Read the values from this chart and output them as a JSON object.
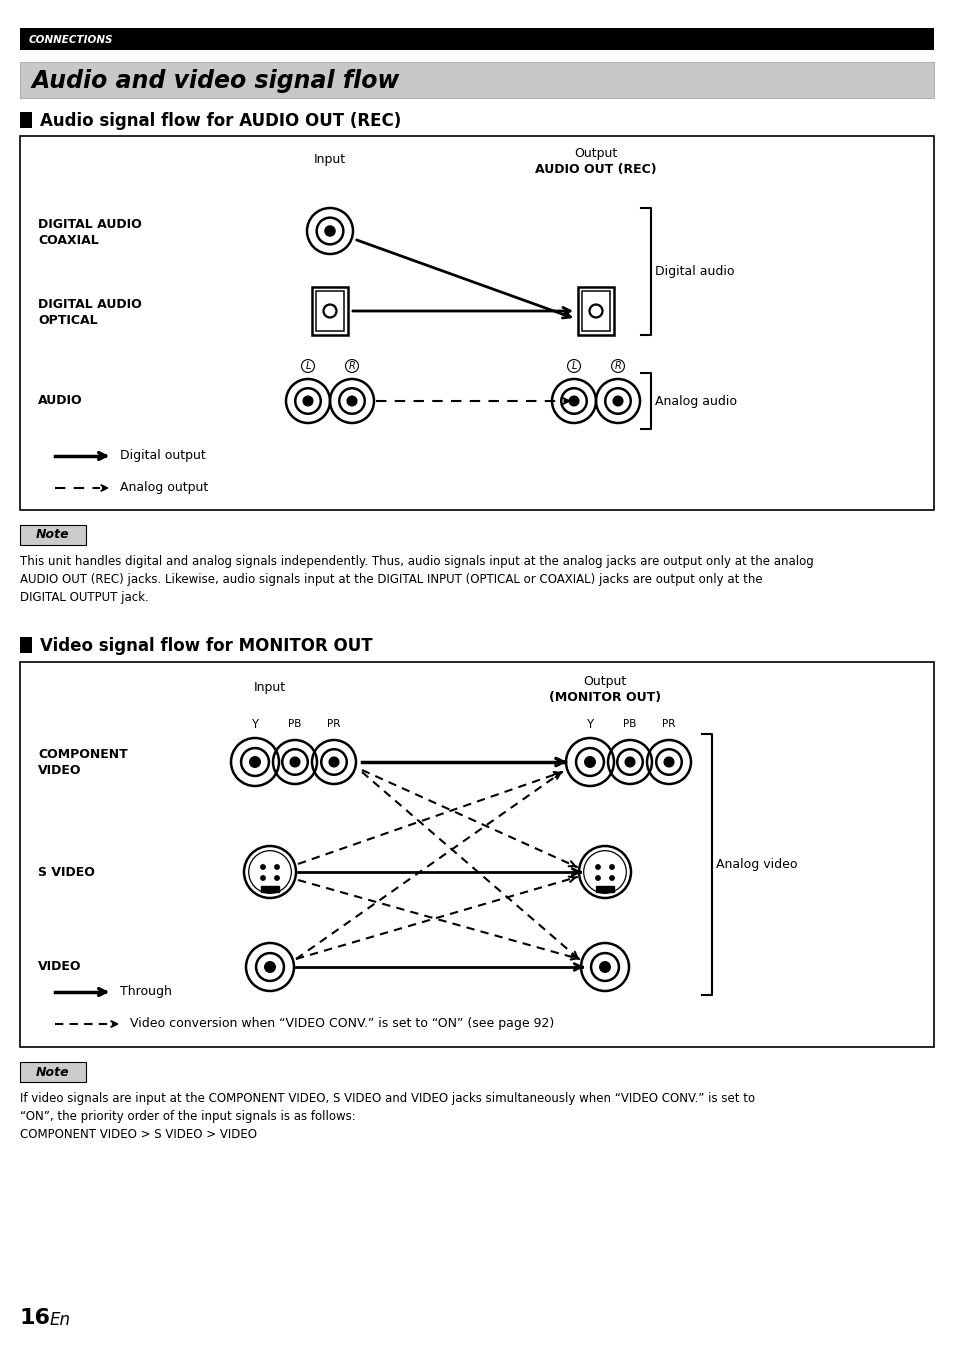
{
  "page_title": "CONNECTIONS",
  "section_title": "Audio and video signal flow",
  "section1_title": "Audio signal flow for AUDIO OUT (REC)",
  "section2_title": "Video signal flow for MONITOR OUT",
  "note1_title": "Note",
  "note1_text": "This unit handles digital and analog signals independently. Thus, audio signals input at the analog jacks are output only at the analog\nAUDIO OUT (REC) jacks. Likewise, audio signals input at the DIGITAL INPUT (OPTICAL or COAXIAL) jacks are output only at the\nDIGITAL OUTPUT jack.",
  "note2_title": "Note",
  "note2_text": "If video signals are input at the COMPONENT VIDEO, S VIDEO and VIDEO jacks simultaneously when “VIDEO CONV.” is set to\n“ON”, the priority order of the input signals is as follows:\nCOMPONENT VIDEO > S VIDEO > VIDEO",
  "page_number": "16",
  "page_number_suffix": "En",
  "bg_color": "#ffffff",
  "header_bg": "#000000",
  "section_title_bg": "#cccccc"
}
